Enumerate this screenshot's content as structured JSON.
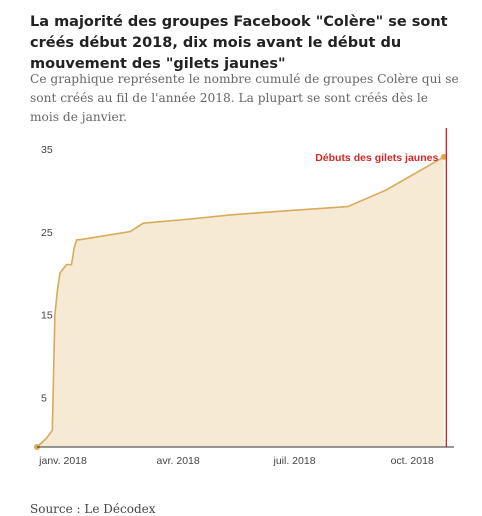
{
  "title": "La majorité des groupes Facebook \"Colère\" se sont créés début 2018, dix mois avant le début du mouvement des \"gilets jaunes\"",
  "subtitle": "Ce graphique représente le nombre cumulé de groupes Colère qui se sont créés au fil de l'année 2018. La plupart se sont créés dès le mois de janvier.",
  "source": "Source : Le Décodex",
  "chart_data": {
    "type": "area",
    "title": "",
    "xlabel": "",
    "ylabel": "",
    "x": [
      "2018-01-01",
      "2018-01-08",
      "2018-01-13",
      "2018-01-15",
      "2018-01-17",
      "2018-01-19",
      "2018-01-24",
      "2018-01-28",
      "2018-01-30",
      "2018-02-01",
      "2018-02-02",
      "2018-02-03",
      "2018-03-15",
      "2018-03-25",
      "2018-05-01",
      "2018-06-01",
      "2018-07-15",
      "2018-09-01",
      "2018-10-01",
      "2018-11-15"
    ],
    "y": [
      0,
      1,
      2,
      16,
      19,
      21,
      22,
      22,
      24,
      25,
      25,
      25,
      26,
      27,
      27.5,
      28,
      28.5,
      29,
      31,
      35
    ],
    "xlim": [
      "2018-01-01",
      "2018-11-23"
    ],
    "ylim": [
      0,
      38
    ],
    "x_tick_labels": [
      "janv. 2018",
      "avr. 2018",
      "juil. 2018",
      "oct. 2018"
    ],
    "x_tick_values": [
      "2018-01-01",
      "2018-04-01",
      "2018-07-01",
      "2018-10-01"
    ],
    "y_ticks": [
      5,
      15,
      25,
      35
    ],
    "grid": false,
    "annotation": {
      "label": "Débuts des gilets jaunes",
      "x": "2018-11-17"
    },
    "colors": {
      "fill": "#f7ead5",
      "line": "#d9aa5a",
      "annotation": "#d62728",
      "axis": "#333333",
      "tick_text": "#444444"
    }
  }
}
